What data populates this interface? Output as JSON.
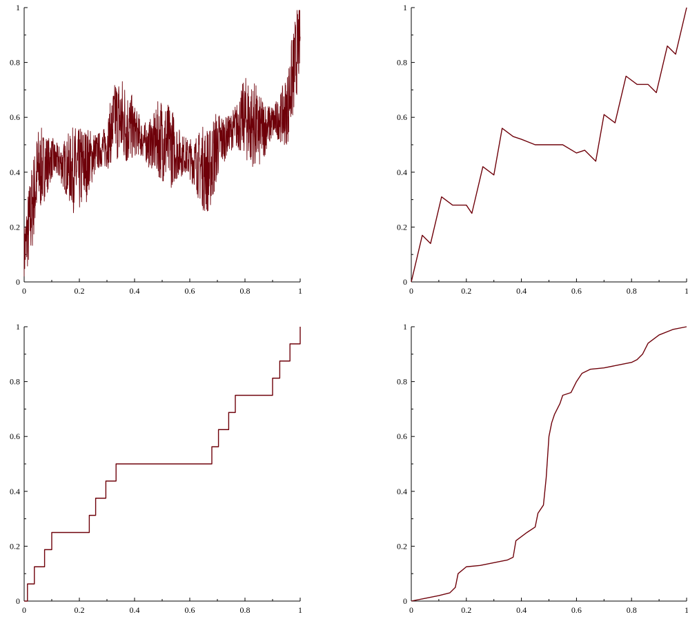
{
  "colors": {
    "curve": "#6e0009",
    "axes": "#000000",
    "background": "#ffffff"
  },
  "chart_data": [
    {
      "type": "line",
      "panel": "top-left",
      "description": "dense random-walk like fractal curve",
      "xlim": [
        0,
        1
      ],
      "ylim": [
        0,
        1
      ],
      "x_ticks": [
        "0",
        "0.2",
        "0.4",
        "0.6",
        "0.8",
        "1"
      ],
      "y_ticks": [
        "0",
        "0.2",
        "0.4",
        "0.6",
        "0.8",
        "1"
      ],
      "series": [
        {
          "x": [
            0,
            0.05,
            0.1,
            0.15,
            0.2,
            0.25,
            0.3,
            0.33,
            0.4,
            0.45,
            0.5,
            0.55,
            0.6,
            0.67,
            0.7,
            0.75,
            0.8,
            0.85,
            0.9,
            0.95,
            1
          ],
          "y": [
            0.1,
            0.4,
            0.45,
            0.42,
            0.4,
            0.46,
            0.5,
            0.6,
            0.55,
            0.5,
            0.52,
            0.48,
            0.45,
            0.4,
            0.5,
            0.55,
            0.6,
            0.55,
            0.58,
            0.62,
            0.9
          ]
        }
      ]
    },
    {
      "type": "line",
      "panel": "top-right",
      "description": "self-similar zigzag increasing curve",
      "xlim": [
        0,
        1
      ],
      "ylim": [
        0,
        1
      ],
      "x_ticks": [
        "0",
        "0.2",
        "0.4",
        "0.6",
        "0.8",
        "1"
      ],
      "y_ticks": [
        "0",
        "0.2",
        "0.4",
        "0.6",
        "0.8",
        "1"
      ],
      "series": [
        {
          "x": [
            0,
            0.04,
            0.07,
            0.11,
            0.15,
            0.2,
            0.22,
            0.26,
            0.3,
            0.33,
            0.37,
            0.4,
            0.45,
            0.5,
            0.55,
            0.6,
            0.63,
            0.67,
            0.7,
            0.74,
            0.78,
            0.82,
            0.86,
            0.89,
            0.93,
            0.96,
            1
          ],
          "y": [
            0,
            0.17,
            0.14,
            0.31,
            0.28,
            0.28,
            0.25,
            0.42,
            0.39,
            0.56,
            0.53,
            0.52,
            0.5,
            0.5,
            0.5,
            0.47,
            0.48,
            0.44,
            0.61,
            0.58,
            0.75,
            0.72,
            0.72,
            0.69,
            0.86,
            0.83,
            1
          ]
        }
      ]
    },
    {
      "type": "line",
      "panel": "bottom-left",
      "description": "Cantor-like devil's staircase",
      "xlim": [
        0,
        1
      ],
      "ylim": [
        0,
        1
      ],
      "x_ticks": [
        "0",
        "0.2",
        "0.4",
        "0.6",
        "0.8",
        "1"
      ],
      "y_ticks": [
        "0",
        "0.2",
        "0.4",
        "0.6",
        "0.8",
        "1"
      ],
      "series": [
        {
          "x": [
            0,
            0.012,
            0.025,
            0.037,
            0.05,
            0.065,
            0.074,
            0.085,
            0.1,
            0.111,
            0.222,
            0.236,
            0.259,
            0.28,
            0.296,
            0.31,
            0.333,
            0.667,
            0.68,
            0.704,
            0.72,
            0.741,
            0.765,
            0.778,
            0.889,
            0.9,
            0.926,
            0.94,
            0.963,
            0.98,
            1
          ],
          "y": [
            0,
            0.0625,
            0.0625,
            0.125,
            0.125,
            0.125,
            0.1875,
            0.1875,
            0.25,
            0.25,
            0.25,
            0.3125,
            0.375,
            0.375,
            0.4375,
            0.4375,
            0.5,
            0.5,
            0.5625,
            0.625,
            0.625,
            0.6875,
            0.75,
            0.75,
            0.75,
            0.8125,
            0.875,
            0.875,
            0.9375,
            0.9375,
            1
          ]
        }
      ]
    },
    {
      "type": "line",
      "panel": "bottom-right",
      "description": "smooth-ish singular sigmoid staircase",
      "xlim": [
        0,
        1
      ],
      "ylim": [
        0,
        1
      ],
      "x_ticks": [
        "0",
        "0.2",
        "0.4",
        "0.6",
        "0.8",
        "1"
      ],
      "y_ticks": [
        "0",
        "0.2",
        "0.4",
        "0.6",
        "0.8",
        "1"
      ],
      "series": [
        {
          "x": [
            0,
            0.05,
            0.1,
            0.14,
            0.16,
            0.17,
            0.2,
            0.25,
            0.3,
            0.35,
            0.37,
            0.38,
            0.42,
            0.45,
            0.46,
            0.48,
            0.49,
            0.5,
            0.51,
            0.52,
            0.54,
            0.55,
            0.58,
            0.6,
            0.62,
            0.65,
            0.7,
            0.75,
            0.8,
            0.82,
            0.84,
            0.86,
            0.9,
            0.95,
            1
          ],
          "y": [
            0,
            0.01,
            0.02,
            0.03,
            0.05,
            0.1,
            0.125,
            0.13,
            0.14,
            0.15,
            0.16,
            0.22,
            0.25,
            0.27,
            0.32,
            0.35,
            0.45,
            0.6,
            0.65,
            0.68,
            0.72,
            0.75,
            0.76,
            0.8,
            0.83,
            0.845,
            0.85,
            0.86,
            0.87,
            0.88,
            0.9,
            0.94,
            0.97,
            0.99,
            1
          ]
        }
      ]
    }
  ]
}
